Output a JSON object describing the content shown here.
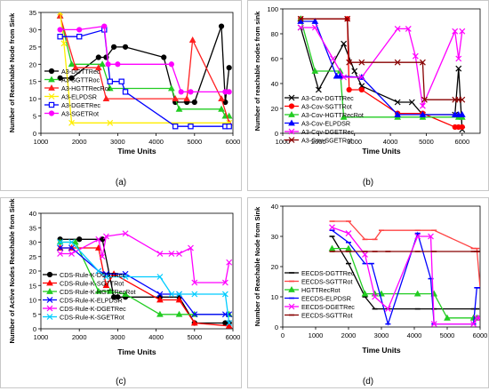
{
  "figure": {
    "panel_labels": [
      "(a)",
      "(b)",
      "(c)",
      "(d)"
    ]
  },
  "chart_data": [
    {
      "type": "line",
      "panel_label": "(a)",
      "ylabel": "Number of Reachable Node from Sink",
      "xlabel": "Time Units",
      "xlim": [
        1000,
        6000
      ],
      "ylim": [
        0,
        35
      ],
      "xticks": [
        1000,
        2000,
        3000,
        4000,
        5000,
        6000
      ],
      "yticks": [
        0,
        5,
        10,
        15,
        20,
        25,
        30,
        35
      ],
      "legend_position": "left",
      "series": [
        {
          "name": "A3-DGTTRec",
          "color": "#000000",
          "marker": "circle",
          "x": [
            1500,
            1800,
            2500,
            2700,
            2900,
            3200,
            4200,
            4500,
            4800,
            5000,
            5700,
            5800,
            5900
          ],
          "y": [
            16,
            16,
            22,
            22,
            25,
            25,
            22,
            9,
            9,
            9,
            31,
            9,
            19
          ]
        },
        {
          "name": "A3-SGTTRoc",
          "color": "#22cc22",
          "marker": "triangle",
          "x": [
            1500,
            1800,
            2600,
            2800,
            4400,
            4600,
            5700,
            5800,
            5900
          ],
          "y": [
            34,
            20,
            20,
            13,
            13,
            7,
            7,
            5,
            5
          ]
        },
        {
          "name": "A3-HGTTRecRot",
          "color": "#ff2020",
          "marker": "triangle",
          "x": [
            1500,
            1900,
            2500,
            2700,
            4500,
            4800,
            4950,
            5700,
            5900
          ],
          "y": [
            34,
            19,
            19,
            10,
            10,
            10,
            27,
            10,
            3
          ]
        },
        {
          "name": "A3-ELPDSR",
          "color": "#ffee00",
          "marker": "x",
          "x": [
            1500,
            1600,
            1800,
            2800,
            5900
          ],
          "y": [
            35,
            26,
            3,
            3,
            3
          ]
        },
        {
          "name": "A3-DGETRec",
          "color": "#0000ff",
          "marker": "square",
          "x": [
            1500,
            2000,
            2650,
            2800,
            3100,
            3200,
            4500,
            4900,
            5800,
            5900
          ],
          "y": [
            28,
            28,
            30,
            15,
            15,
            12,
            2,
            2,
            2,
            2
          ]
        },
        {
          "name": "A3-SGETRot",
          "color": "#ff00ff",
          "marker": "circle",
          "x": [
            1500,
            2000,
            2650,
            2750,
            3000,
            4400,
            4650,
            4900,
            5800,
            5900
          ],
          "y": [
            30,
            30,
            31,
            20,
            20,
            20,
            12,
            12,
            12,
            12
          ]
        }
      ]
    },
    {
      "type": "line",
      "panel_label": "(b)",
      "ylabel": "Number of reachable nodes from sink",
      "xlabel": "Time Units",
      "xlim": [
        1000,
        6500
      ],
      "ylim": [
        0,
        100
      ],
      "xticks": [
        1000,
        2000,
        3000,
        4000,
        5000,
        6000
      ],
      "yticks": [
        0,
        20,
        40,
        60,
        80,
        100
      ],
      "legend_position": "bottom-left",
      "series": [
        {
          "name": "A3-Cov-DGTTRec",
          "color": "#000000",
          "marker": "x",
          "x": [
            1500,
            2000,
            2700,
            3000,
            3200,
            4200,
            4600,
            4900,
            5800,
            5900,
            6000
          ],
          "y": [
            85,
            35,
            72,
            50,
            38,
            25,
            25,
            15,
            15,
            52,
            3
          ]
        },
        {
          "name": "A3-Cov-SGTTRot",
          "color": "#ff0000",
          "marker": "circle",
          "x": [
            1500,
            2800,
            2850,
            3200,
            4200,
            4900,
            5800,
            5900,
            6000
          ],
          "y": [
            92,
            92,
            35,
            35,
            16,
            16,
            5,
            5,
            5
          ]
        },
        {
          "name": "A3-Cov-HGTTRecRot",
          "color": "#22cc22",
          "marker": "triangle",
          "x": [
            1500,
            1900,
            2600,
            2700,
            4200,
            4900,
            5900,
            6000
          ],
          "y": [
            92,
            50,
            50,
            13,
            13,
            13,
            13,
            13
          ]
        },
        {
          "name": "A3-Cov-ELPDSR",
          "color": "#0000ff",
          "marker": "triangle",
          "x": [
            1500,
            1900,
            2500,
            2600,
            3200,
            4200,
            4900,
            5800,
            5900,
            6000
          ],
          "y": [
            90,
            90,
            46,
            46,
            45,
            15,
            15,
            15,
            15,
            15
          ]
        },
        {
          "name": "A3-Cov-DGETRec",
          "color": "#ff00ff",
          "marker": "x",
          "x": [
            1500,
            1900,
            2400,
            2700,
            3200,
            4200,
            4500,
            4700,
            4900,
            5800,
            5900,
            6000
          ],
          "y": [
            85,
            85,
            60,
            45,
            45,
            84,
            84,
            62,
            22,
            82,
            60,
            82
          ]
        },
        {
          "name": "A3-Cov-SGETRot",
          "color": "#880000",
          "marker": "x",
          "x": [
            1500,
            2800,
            2850,
            3200,
            4200,
            4900,
            4950,
            5800,
            5900,
            6000
          ],
          "y": [
            92,
            92,
            57,
            57,
            57,
            57,
            27,
            27,
            27,
            27
          ]
        }
      ]
    },
    {
      "type": "line",
      "panel_label": "(c)",
      "ylabel": "Number of Active Nodes Reachable from Sink",
      "xlabel": "Time Units",
      "xlim": [
        1000,
        6000
      ],
      "ylim": [
        0,
        40
      ],
      "xticks": [
        1000,
        2000,
        3000,
        4000,
        5000,
        6000
      ],
      "yticks": [
        0,
        5,
        10,
        15,
        20,
        25,
        30,
        35,
        40
      ],
      "legend_position": "bottom-left",
      "series": [
        {
          "name": "CDS-Rule-K-DGTTRec",
          "color": "#000000",
          "marker": "circle",
          "x": [
            1500,
            2000,
            2600,
            2900,
            3000,
            3200,
            4100,
            4600,
            5000,
            5800,
            5900
          ],
          "y": [
            31,
            31,
            31,
            11,
            11,
            11,
            11,
            11,
            2,
            2,
            2
          ]
        },
        {
          "name": "CDS-Rule-K-SGTTRot",
          "color": "#ff0000",
          "marker": "triangle",
          "x": [
            1500,
            1800,
            2500,
            2700,
            2900,
            4100,
            4600,
            5000,
            5900
          ],
          "y": [
            28,
            28,
            28,
            15,
            19,
            10,
            10,
            2,
            1
          ]
        },
        {
          "name": "CDS-Rule-K-HGTTRecRot",
          "color": "#22cc22",
          "marker": "triangle",
          "x": [
            1500,
            1900,
            2500,
            2800,
            3200,
            4100,
            4600,
            5000,
            5900
          ],
          "y": [
            30,
            30,
            13,
            13,
            12,
            5,
            5,
            5,
            5
          ]
        },
        {
          "name": "CDS-Rule-K-ELPDSR",
          "color": "#0000ff",
          "marker": "x",
          "x": [
            1500,
            1800,
            2500,
            2700,
            3200,
            4100,
            4600,
            5000,
            5800,
            5900
          ],
          "y": [
            28,
            28,
            20,
            19,
            19,
            12,
            12,
            5,
            5,
            5
          ]
        },
        {
          "name": "CDS-Rule-K-DGETRec",
          "color": "#ff00ff",
          "marker": "x",
          "x": [
            1500,
            1800,
            2500,
            2600,
            2700,
            3200,
            4100,
            4400,
            4600,
            4900,
            5000,
            5800,
            5900
          ],
          "y": [
            26,
            26,
            31,
            25,
            32,
            33,
            26,
            26,
            26,
            28,
            16,
            16,
            23
          ]
        },
        {
          "name": "CDS-Rule-K-SGETRot",
          "color": "#00ccff",
          "marker": "x",
          "x": [
            1500,
            1800,
            2500,
            2700,
            3200,
            4100,
            4400,
            4600,
            5000,
            5800,
            5900
          ],
          "y": [
            30,
            30,
            20,
            18,
            18,
            18,
            12,
            12,
            12,
            12,
            2
          ]
        }
      ]
    },
    {
      "type": "line",
      "panel_label": "(d)",
      "ylabel": "Number of Reachable Node from Sink",
      "xlabel": "Time Units",
      "xlim": [
        0,
        6000
      ],
      "ylim": [
        0,
        40
      ],
      "xticks": [
        0,
        1000,
        2000,
        3000,
        4000,
        5000,
        6000
      ],
      "yticks": [
        0,
        10,
        20,
        30,
        40
      ],
      "legend_position": "bottom-left",
      "series": [
        {
          "name": "EECDS-DGTTRec",
          "color": "#000000",
          "marker": "dash",
          "x": [
            1500,
            2000,
            2500,
            2800,
            4100,
            4600,
            5800,
            5900
          ],
          "y": [
            30,
            21,
            10,
            6,
            6,
            6,
            6,
            6
          ]
        },
        {
          "name": "EECDS-SGTTRot",
          "color": "#ff4444",
          "marker": "dash",
          "x": [
            1500,
            2000,
            2500,
            2800,
            3000,
            4100,
            4600,
            5800,
            5900,
            6000
          ],
          "y": [
            35,
            35,
            29,
            29,
            32,
            32,
            32,
            26,
            26,
            13
          ]
        },
        {
          "name": "HGTTRecRot",
          "color": "#22cc22",
          "marker": "triangle",
          "x": [
            1500,
            2000,
            2500,
            2800,
            3000,
            4100,
            4600,
            5000,
            5800,
            5900,
            6000
          ],
          "y": [
            26,
            26,
            11,
            11,
            11,
            11,
            11,
            3,
            3,
            3,
            3
          ]
        },
        {
          "name": "EECDS-ELPDSR",
          "color": "#0000ff",
          "marker": "dash",
          "x": [
            1500,
            2000,
            2500,
            2700,
            3200,
            4100,
            4500,
            4600,
            5800,
            5900,
            6000
          ],
          "y": [
            32,
            28,
            21,
            21,
            1,
            31,
            16,
            1,
            1,
            13,
            13
          ]
        },
        {
          "name": "EECDS-DGETRec",
          "color": "#ff00ff",
          "marker": "x",
          "x": [
            1500,
            2000,
            2500,
            2800,
            3200,
            4100,
            4500,
            4600,
            5800,
            5900,
            6000
          ],
          "y": [
            33,
            31,
            24,
            10,
            6,
            30,
            30,
            1,
            1,
            3,
            3
          ]
        },
        {
          "name": "EECDS-SGTTRot",
          "color": "#880000",
          "marker": "dash",
          "x": [
            1500,
            2000,
            2500,
            2800,
            3200,
            4100,
            4600,
            5800,
            5900,
            6000
          ],
          "y": [
            25,
            25,
            25,
            25,
            25,
            25,
            25,
            25,
            25,
            25
          ]
        }
      ]
    }
  ]
}
